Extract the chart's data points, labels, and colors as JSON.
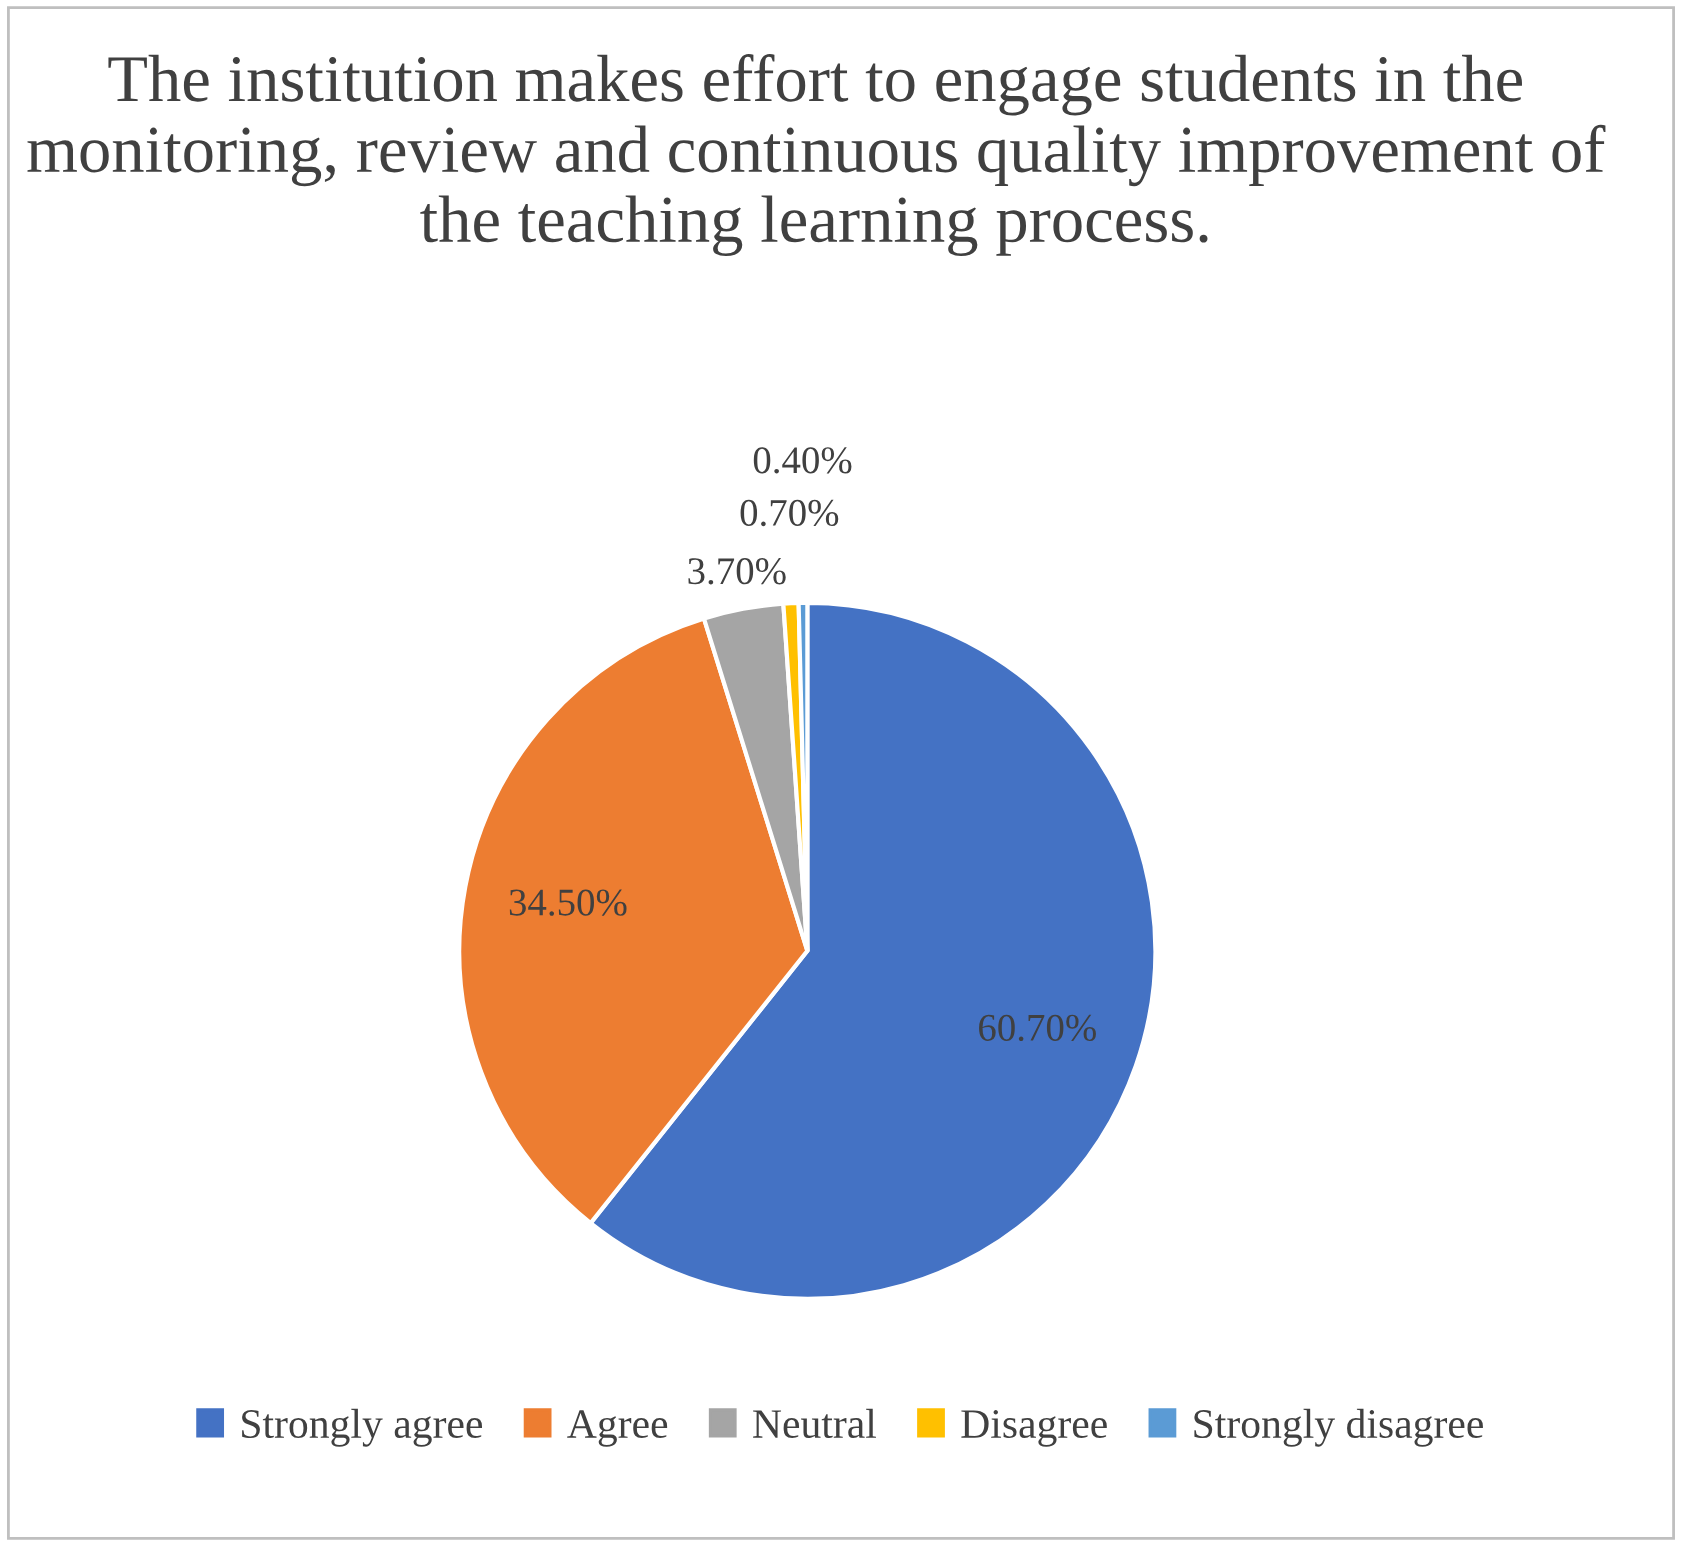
{
  "chart_data": {
    "type": "pie",
    "title": "The institution makes effort to engage students in the monitoring, review and continuous quality improvement of the teaching learning process.",
    "categories": [
      "Strongly agree",
      "Agree",
      "Neutral",
      "Disagree",
      "Strongly disagree"
    ],
    "values": [
      60.7,
      34.5,
      3.7,
      0.7,
      0.4
    ],
    "colors": [
      "#4472c4",
      "#ed7d31",
      "#a5a5a5",
      "#ffc000",
      "#5b9bd5"
    ],
    "value_labels": [
      "60.70%",
      "34.50%",
      "3.70%",
      "0.70%",
      "0.40%"
    ],
    "legend": "bottom"
  }
}
